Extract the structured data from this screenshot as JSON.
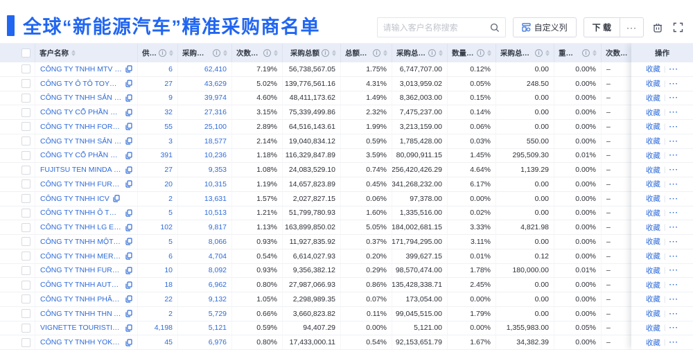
{
  "header": {
    "title": "全球“新能源汽车”精准采购商名单",
    "search_placeholder": "请输入客户名称搜索",
    "customize_label": "自定义列",
    "download_label": "下 载",
    "more_label": "···"
  },
  "colors": {
    "accent": "#2166f1",
    "link": "#2e6bd9",
    "header_bg": "#e8edf8"
  },
  "table": {
    "columns": [
      {
        "key": "name",
        "label": "客户名称",
        "info": false,
        "sort": true
      },
      {
        "key": "suppliers",
        "label": "供应商",
        "info": true,
        "sort": true
      },
      {
        "key": "times",
        "label": "采购总次数",
        "info": true,
        "sort": true
      },
      {
        "key": "times_pct",
        "label": "次数占比",
        "info": true,
        "sort": true
      },
      {
        "key": "amount",
        "label": "采购总额",
        "info": true,
        "sort": true
      },
      {
        "key": "amount_pct",
        "label": "总额占比",
        "info": true,
        "sort": true
      },
      {
        "key": "qty",
        "label": "采购总数量",
        "info": true,
        "sort": true
      },
      {
        "key": "qty_pct",
        "label": "数量占比",
        "info": true,
        "sort": true
      },
      {
        "key": "weight",
        "label": "采购总重量",
        "info": true,
        "sort": true
      },
      {
        "key": "weight_pct",
        "label": "重量占比",
        "info": true,
        "sort": true
      },
      {
        "key": "trend",
        "label": "次数趋势",
        "info": false,
        "sort": false
      }
    ],
    "action_column": {
      "label": "操作",
      "favorite_label": "收藏",
      "more_label": "···"
    },
    "trend_value": "–",
    "rows": [
      {
        "name": "CÔNG TY TNHH MTV SẢN XUẤ...",
        "suppliers": "6",
        "times": "62,410",
        "times_pct": "7.19%",
        "amount": "56,738,567.05",
        "amount_pct": "1.75%",
        "qty": "6,747,707.00",
        "qty_pct": "0.12%",
        "weight": "0.00",
        "weight_pct": "0.00%"
      },
      {
        "name": "CÔNG TY Ô TÔ TOYOTA VIỆT ...",
        "suppliers": "27",
        "times": "43,629",
        "times_pct": "5.02%",
        "amount": "139,776,561.16",
        "amount_pct": "4.31%",
        "qty": "3,013,959.02",
        "qty_pct": "0.05%",
        "weight": "248.50",
        "weight_pct": "0.00%"
      },
      {
        "name": "CÔNG TY TNHH SẢN XUẤT VÀ ...",
        "suppliers": "9",
        "times": "39,974",
        "times_pct": "4.60%",
        "amount": "48,411,173.62",
        "amount_pct": "1.49%",
        "qty": "8,362,003.00",
        "qty_pct": "0.15%",
        "weight": "0.00",
        "weight_pct": "0.00%"
      },
      {
        "name": "CÔNG TY CỔ PHẦN SẢN XUẤT...",
        "suppliers": "32",
        "times": "27,316",
        "times_pct": "3.15%",
        "amount": "75,339,499.86",
        "amount_pct": "2.32%",
        "qty": "7,475,237.00",
        "qty_pct": "0.14%",
        "weight": "0.00",
        "weight_pct": "0.00%"
      },
      {
        "name": "CÔNG TY TNHH FORD VIỆT NAM",
        "suppliers": "55",
        "times": "25,100",
        "times_pct": "2.89%",
        "amount": "64,516,143.61",
        "amount_pct": "1.99%",
        "qty": "3,213,159.00",
        "qty_pct": "0.06%",
        "weight": "0.00",
        "weight_pct": "0.00%"
      },
      {
        "name": "CÔNG TY TNHH SẢN XUẤT VÀ ...",
        "suppliers": "3",
        "times": "18,577",
        "times_pct": "2.14%",
        "amount": "19,040,834.12",
        "amount_pct": "0.59%",
        "qty": "1,785,428.00",
        "qty_pct": "0.03%",
        "weight": "550.00",
        "weight_pct": "0.00%"
      },
      {
        "name": "CÔNG TY CỔ PHẦN SẢN XUẤT...",
        "suppliers": "391",
        "times": "10,236",
        "times_pct": "1.18%",
        "amount": "116,329,847.89",
        "amount_pct": "3.59%",
        "qty": "80,090,911.15",
        "qty_pct": "1.45%",
        "weight": "295,509.30",
        "weight_pct": "0.01%"
      },
      {
        "name": "FUJITSU TEN MINDA INDIA PVT...",
        "suppliers": "27",
        "times": "9,353",
        "times_pct": "1.08%",
        "amount": "24,083,529.10",
        "amount_pct": "0.74%",
        "qty": "256,420,426.29",
        "qty_pct": "4.64%",
        "weight": "1,139.29",
        "weight_pct": "0.00%"
      },
      {
        "name": "CÔNG TY TNHH FURUKAWA A...",
        "suppliers": "20",
        "times": "10,315",
        "times_pct": "1.19%",
        "amount": "14,657,823.89",
        "amount_pct": "0.45%",
        "qty": "341,268,232.00",
        "qty_pct": "6.17%",
        "weight": "0.00",
        "weight_pct": "0.00%"
      },
      {
        "name": "CÔNG TY TNHH ICV",
        "suppliers": "2",
        "times": "13,631",
        "times_pct": "1.57%",
        "amount": "2,027,827.15",
        "amount_pct": "0.06%",
        "qty": "97,378.00",
        "qty_pct": "0.00%",
        "weight": "0.00",
        "weight_pct": "0.00%"
      },
      {
        "name": "CÔNG TY TNHH Ô TÔ MITSUBI...",
        "suppliers": "5",
        "times": "10,513",
        "times_pct": "1.21%",
        "amount": "51,799,780.93",
        "amount_pct": "1.60%",
        "qty": "1,335,516.00",
        "qty_pct": "0.02%",
        "weight": "0.00",
        "weight_pct": "0.00%"
      },
      {
        "name": "CÔNG TY TNHH LG ELECTRON...",
        "suppliers": "102",
        "times": "9,817",
        "times_pct": "1.13%",
        "amount": "163,899,850.02",
        "amount_pct": "5.05%",
        "qty": "184,002,681.15",
        "qty_pct": "3.33%",
        "weight": "4,821.98",
        "weight_pct": "0.00%"
      },
      {
        "name": "CÔNG TY TNHH MỘT THÀNH V...",
        "suppliers": "5",
        "times": "8,066",
        "times_pct": "0.93%",
        "amount": "11,927,835.92",
        "amount_pct": "0.37%",
        "qty": "171,794,295.00",
        "qty_pct": "3.11%",
        "weight": "0.00",
        "weight_pct": "0.00%"
      },
      {
        "name": "CÔNG TY TNHH MERCEDES–B...",
        "suppliers": "6",
        "times": "4,704",
        "times_pct": "0.54%",
        "amount": "6,614,027.93",
        "amount_pct": "0.20%",
        "qty": "399,627.15",
        "qty_pct": "0.01%",
        "weight": "0.12",
        "weight_pct": "0.00%"
      },
      {
        "name": "CÔNG TY TNHH FURUKAWA A...",
        "suppliers": "10",
        "times": "8,092",
        "times_pct": "0.93%",
        "amount": "9,356,382.12",
        "amount_pct": "0.29%",
        "qty": "98,570,474.00",
        "qty_pct": "1.78%",
        "weight": "180,000.00",
        "weight_pct": "0.01%"
      },
      {
        "name": "CÔNG TY TNHH AUTEL VIỆT N...",
        "suppliers": "18",
        "times": "6,962",
        "times_pct": "0.80%",
        "amount": "27,987,066.93",
        "amount_pct": "0.86%",
        "qty": "135,428,338.71",
        "qty_pct": "2.45%",
        "weight": "0.00",
        "weight_pct": "0.00%"
      },
      {
        "name": "CÔNG TY TNHH PHÂN PHỐI T...",
        "suppliers": "22",
        "times": "9,132",
        "times_pct": "1.05%",
        "amount": "2,298,989.35",
        "amount_pct": "0.07%",
        "qty": "173,054.00",
        "qty_pct": "0.00%",
        "weight": "0.00",
        "weight_pct": "0.00%"
      },
      {
        "name": "CÔNG TY TNHH THN AUTOPAR...",
        "suppliers": "2",
        "times": "5,729",
        "times_pct": "0.66%",
        "amount": "3,660,823.82",
        "amount_pct": "0.11%",
        "qty": "99,045,515.00",
        "qty_pct": "1.79%",
        "weight": "0.00",
        "weight_pct": "0.00%"
      },
      {
        "name": "VIGNETTE TOURISTIQUE G UNI...",
        "suppliers": "4,198",
        "times": "5,121",
        "times_pct": "0.59%",
        "amount": "94,407.29",
        "amount_pct": "0.00%",
        "qty": "5,121.00",
        "qty_pct": "0.00%",
        "weight": "1,355,983.00",
        "weight_pct": "0.05%"
      },
      {
        "name": "CÔNG TY TNHH YOKOWO VIỆT...",
        "suppliers": "45",
        "times": "6,976",
        "times_pct": "0.80%",
        "amount": "17,433,000.11",
        "amount_pct": "0.54%",
        "qty": "92,153,651.79",
        "qty_pct": "1.67%",
        "weight": "34,382.39",
        "weight_pct": "0.00%"
      }
    ]
  }
}
